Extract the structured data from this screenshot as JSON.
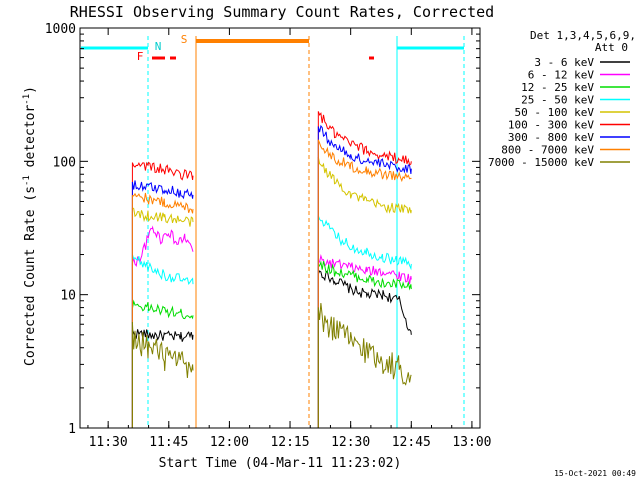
{
  "chart_data": {
    "type": "line",
    "title": "RHESSI Observing Summary Count Rates, Corrected",
    "xlabel": "Start Time (04-Mar-11 11:23:02)",
    "ylabel": "Corrected Count Rate (s",
    "ylabel_sup1": "-1",
    "ylabel_mid": " detector",
    "ylabel_sup2": "-1",
    "ylabel_end": ")",
    "timestamp": "15-Oct-2021 00:49",
    "yscale": "log",
    "ylim": [
      1,
      1000
    ],
    "xlim": [
      "11:23:02",
      "13:02:00"
    ],
    "x_ticks": [
      "11:30",
      "11:45",
      "12:00",
      "12:15",
      "12:30",
      "12:45",
      "13:00"
    ],
    "y_ticks": [
      "1",
      "10",
      "100",
      "1000"
    ],
    "legend": {
      "placement": "right",
      "header1": "Det 1,3,4,5,6,9,",
      "header2": "Att 0",
      "entries": [
        {
          "label": "3 - 6 keV",
          "color": "#000000"
        },
        {
          "label": "6 - 12 keV",
          "color": "#ff00ff"
        },
        {
          "label": "12 - 25 keV",
          "color": "#00dd00"
        },
        {
          "label": "25 - 50 keV",
          "color": "#00ffff"
        },
        {
          "label": "50 - 100 keV",
          "color": "#d4c400"
        },
        {
          "label": "100 - 300 keV",
          "color": "#ff0000"
        },
        {
          "label": "300 - 800 keV",
          "color": "#0000ff"
        },
        {
          "label": "800 - 7000 keV",
          "color": "#ff8000"
        },
        {
          "label": "7000 - 15000 keV",
          "color": "#808000"
        }
      ]
    },
    "flags": [
      {
        "label": "F",
        "color": "#ff0000"
      },
      {
        "label": "N",
        "color": "#00cccc"
      },
      {
        "label": "S",
        "color": "#ff8000"
      }
    ],
    "series": [
      {
        "name": "3 - 6 keV",
        "color": "#000000",
        "segments": [
          {
            "x": [
              "11:36",
              "11:40",
              "11:44",
              "11:48",
              "11:51"
            ],
            "y": [
              5.2,
              5.0,
              4.9,
              4.8,
              5.0
            ]
          },
          {
            "x": [
              "12:22",
              "12:26",
              "12:30",
              "12:34",
              "12:38",
              "12:42",
              "12:45"
            ],
            "y": [
              15,
              13,
              11,
              10,
              10,
              9,
              5
            ]
          }
        ]
      },
      {
        "name": "6 - 12 keV",
        "color": "#ff00ff",
        "segments": [
          {
            "x": [
              "11:36",
              "11:38",
              "11:41",
              "11:43",
              "11:45",
              "11:47",
              "11:49",
              "11:51"
            ],
            "y": [
              17,
              19,
              32,
              26,
              30,
              24,
              27,
              21
            ]
          },
          {
            "x": [
              "12:22",
              "12:26",
              "12:30",
              "12:34",
              "12:38",
              "12:42",
              "12:45"
            ],
            "y": [
              18,
              17,
              16,
              15,
              15,
              14,
              13
            ]
          }
        ]
      },
      {
        "name": "12 - 25 keV",
        "color": "#00dd00",
        "segments": [
          {
            "x": [
              "11:36",
              "11:40",
              "11:44",
              "11:48",
              "11:51"
            ],
            "y": [
              8.5,
              8.0,
              7.5,
              7.2,
              7.0
            ]
          },
          {
            "x": [
              "12:22",
              "12:26",
              "12:30",
              "12:34",
              "12:38",
              "12:42",
              "12:45"
            ],
            "y": [
              17,
              15,
              14,
              13,
              12,
              12,
              11
            ]
          }
        ]
      },
      {
        "name": "25 - 50 keV",
        "color": "#00ffff",
        "segments": [
          {
            "x": [
              "11:36",
              "11:40",
              "11:44",
              "11:48",
              "11:51"
            ],
            "y": [
              19,
              16,
              14,
              13,
              12
            ]
          },
          {
            "x": [
              "12:22",
              "12:26",
              "12:30",
              "12:34",
              "12:38",
              "12:42",
              "12:45"
            ],
            "y": [
              40,
              28,
              23,
              21,
              19,
              18,
              17
            ]
          }
        ]
      },
      {
        "name": "50 - 100 keV",
        "color": "#d4c400",
        "segments": [
          {
            "x": [
              "11:36",
              "11:40",
              "11:44",
              "11:48",
              "11:51"
            ],
            "y": [
              41,
              39,
              38,
              36,
              35
            ]
          },
          {
            "x": [
              "12:22",
              "12:26",
              "12:30",
              "12:34",
              "12:38",
              "12:42",
              "12:45"
            ],
            "y": [
              100,
              72,
              57,
              50,
              46,
              44,
              43
            ]
          }
        ]
      },
      {
        "name": "100 - 300 keV",
        "color": "#ff0000",
        "segments": [
          {
            "x": [
              "11:36",
              "11:40",
              "11:44",
              "11:48",
              "11:51"
            ],
            "y": [
              98,
              92,
              86,
              80,
              78
            ]
          },
          {
            "x": [
              "12:22",
              "12:26",
              "12:30",
              "12:34",
              "12:38",
              "12:42",
              "12:45"
            ],
            "y": [
              230,
              160,
              135,
              120,
              110,
              105,
              100
            ]
          }
        ]
      },
      {
        "name": "300 - 800 keV",
        "color": "#0000ff",
        "segments": [
          {
            "x": [
              "11:36",
              "11:40",
              "11:44",
              "11:48",
              "11:51"
            ],
            "y": [
              67,
              64,
              62,
              58,
              56
            ]
          },
          {
            "x": [
              "12:22",
              "12:26",
              "12:30",
              "12:34",
              "12:38",
              "12:42",
              "12:45"
            ],
            "y": [
              180,
              130,
              110,
              100,
              95,
              90,
              88
            ]
          }
        ]
      },
      {
        "name": "800 - 7000 keV",
        "color": "#ff8000",
        "segments": [
          {
            "x": [
              "11:36",
              "11:40",
              "11:44",
              "11:48",
              "11:51"
            ],
            "y": [
              57,
              52,
              49,
              46,
              44
            ]
          },
          {
            "x": [
              "12:22",
              "12:26",
              "12:30",
              "12:34",
              "12:38",
              "12:42",
              "12:45"
            ],
            "y": [
              140,
              105,
              92,
              85,
              80,
              77,
              74
            ]
          }
        ]
      },
      {
        "name": "7000 - 15000 keV",
        "color": "#808000",
        "segments": [
          {
            "x": [
              "11:36",
              "11:40",
              "11:44",
              "11:48",
              "11:51"
            ],
            "y": [
              5.0,
              4.0,
              3.4,
              3.0,
              2.7
            ]
          },
          {
            "x": [
              "12:22",
              "12:26",
              "12:30",
              "12:34",
              "12:38",
              "12:42",
              "12:45"
            ],
            "y": [
              7.0,
              5.5,
              4.5,
              3.8,
              3.2,
              2.8,
              2.5
            ]
          }
        ]
      }
    ]
  }
}
